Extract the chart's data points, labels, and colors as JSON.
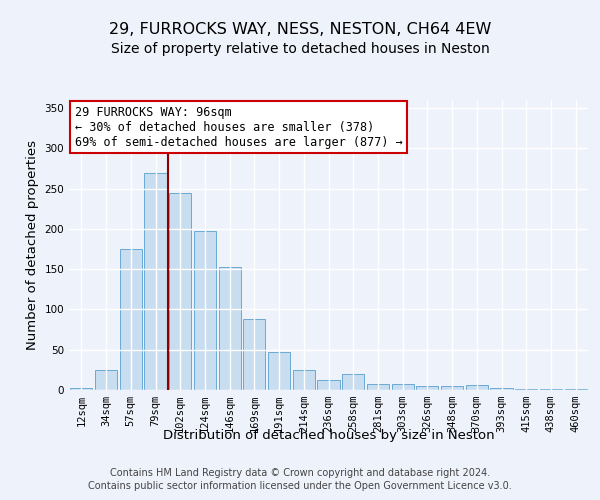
{
  "title_line1": "29, FURROCKS WAY, NESS, NESTON, CH64 4EW",
  "title_line2": "Size of property relative to detached houses in Neston",
  "xlabel": "Distribution of detached houses by size in Neston",
  "ylabel": "Number of detached properties",
  "categories": [
    "12sqm",
    "34sqm",
    "57sqm",
    "79sqm",
    "102sqm",
    "124sqm",
    "146sqm",
    "169sqm",
    "191sqm",
    "214sqm",
    "236sqm",
    "258sqm",
    "281sqm",
    "303sqm",
    "326sqm",
    "348sqm",
    "370sqm",
    "393sqm",
    "415sqm",
    "438sqm",
    "460sqm"
  ],
  "values": [
    2,
    25,
    175,
    270,
    245,
    198,
    153,
    88,
    47,
    25,
    12,
    20,
    7,
    7,
    5,
    5,
    6,
    2,
    1,
    1,
    1
  ],
  "bar_color": "#c9ddf0",
  "bar_edge_color": "#6aaad4",
  "vline_x_index": 3.5,
  "vline_color": "#8b0000",
  "annotation_text": "29 FURROCKS WAY: 96sqm\n← 30% of detached houses are smaller (378)\n69% of semi-detached houses are larger (877) →",
  "annotation_box_color": "#ffffff",
  "annotation_box_edge": "#cc0000",
  "ylim": [
    0,
    360
  ],
  "yticks": [
    0,
    50,
    100,
    150,
    200,
    250,
    300,
    350
  ],
  "footer_line1": "Contains HM Land Registry data © Crown copyright and database right 2024.",
  "footer_line2": "Contains public sector information licensed under the Open Government Licence v3.0.",
  "bg_color": "#eef2fa",
  "plot_bg_color": "#eef2fa",
  "grid_color": "#ffffff",
  "title_fontsize": 11.5,
  "subtitle_fontsize": 10,
  "axis_label_fontsize": 9.5,
  "tick_fontsize": 7.5,
  "footer_fontsize": 7.0,
  "annotation_fontsize": 8.5
}
